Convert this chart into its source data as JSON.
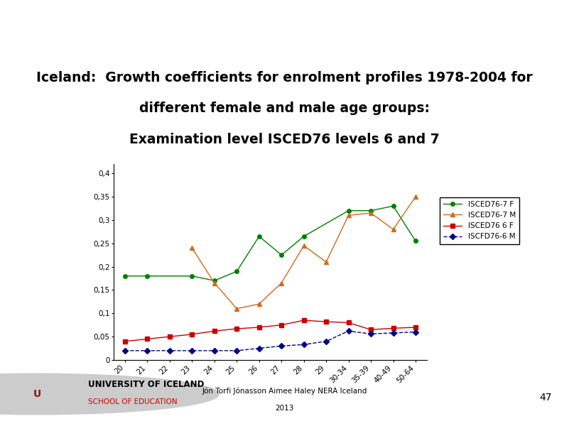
{
  "title_line1": "Iceland:  Growth coefficients for enrolment profiles 1978-2004 for",
  "title_line2": "different female and male age groups:",
  "title_line3": "Examination level ISCED76 levels 6 and 7",
  "x_labels": [
    "20",
    "21",
    "22",
    "23",
    "24",
    "25",
    "26",
    "27",
    "28",
    "29",
    "30-34",
    "35-39",
    "40-49",
    "50-64"
  ],
  "series_F7": {
    "x_idx": [
      0,
      1,
      3,
      4,
      5,
      6,
      7,
      8,
      10,
      11,
      12,
      13
    ],
    "y": [
      0.18,
      0.18,
      0.18,
      0.17,
      0.19,
      0.265,
      0.225,
      0.265,
      0.32,
      0.32,
      0.33,
      0.255
    ],
    "color": "#008000",
    "marker": "o",
    "linestyle": "-",
    "label": "ISCED76-7 F"
  },
  "series_M7": {
    "x_idx": [
      3,
      4,
      5,
      6,
      7,
      8,
      9,
      10,
      11,
      12,
      13
    ],
    "y": [
      0.24,
      0.165,
      0.11,
      0.12,
      0.165,
      0.245,
      0.21,
      0.31,
      0.315,
      0.28,
      0.35
    ],
    "color": "#D2691E",
    "marker": "^",
    "linestyle": "-",
    "label": "ISCED76-7 M"
  },
  "series_F6": {
    "x_idx": [
      0,
      1,
      2,
      3,
      4,
      5,
      6,
      7,
      8,
      9,
      10,
      11,
      12,
      13
    ],
    "y": [
      0.04,
      0.045,
      0.05,
      0.055,
      0.062,
      0.067,
      0.07,
      0.075,
      0.085,
      0.082,
      0.08,
      0.065,
      0.068,
      0.07
    ],
    "color": "#CC0000",
    "marker": "s",
    "linestyle": "-",
    "label": "ISCED76 6 F"
  },
  "series_M6": {
    "x_idx": [
      0,
      1,
      2,
      3,
      4,
      5,
      6,
      7,
      8,
      9,
      10,
      11,
      12,
      13
    ],
    "y": [
      0.02,
      0.02,
      0.02,
      0.02,
      0.02,
      0.02,
      0.025,
      0.03,
      0.033,
      0.04,
      0.062,
      0.056,
      0.058,
      0.06
    ],
    "color": "#00008B",
    "marker": "D",
    "linestyle": "--",
    "label": "ISCFD76-6 M"
  },
  "ylim": [
    0,
    0.42
  ],
  "yticks": [
    0,
    0.05,
    0.1,
    0.15,
    0.2,
    0.25,
    0.3,
    0.35,
    0.4
  ],
  "ytick_labels": [
    "0",
    "0,05",
    "0,1",
    "0,15",
    "0,2",
    "0,25",
    "0,3",
    "0,35",
    "0,4"
  ],
  "footer_text": "Jón Torfi Jónasson Aimee Haley NERA Iceland\n2013",
  "page_number": "47",
  "background_color": "#ffffff",
  "header_bar_color": "#8B1A1A",
  "univ_text1": "UNIVERSITY OF ICELAND",
  "univ_text2": "SCHOOL OF EDUCATION"
}
